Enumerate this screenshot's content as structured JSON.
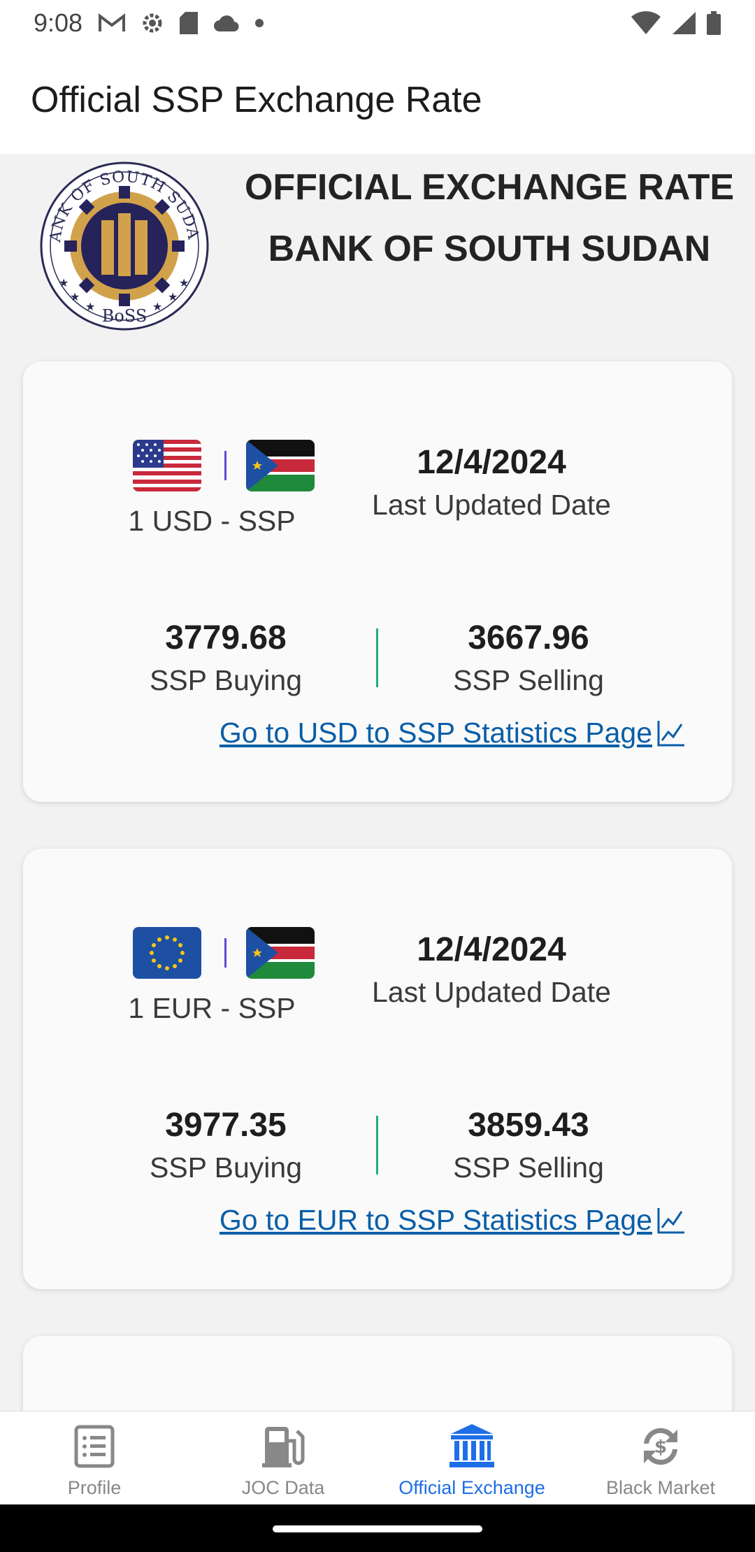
{
  "status_bar": {
    "time": "9:08",
    "left_icons": [
      "gmail-icon",
      "settings-icon",
      "sd-card-icon",
      "cloud-icon",
      "dot-icon"
    ],
    "right_icons": [
      "wifi-icon",
      "signal-icon",
      "battery-icon"
    ]
  },
  "app_bar": {
    "title": "Official SSP Exchange Rate"
  },
  "header": {
    "line1": "OFFICIAL EXCHANGE RATE",
    "line2": "BANK OF SOUTH SUDAN",
    "seal": {
      "top_text": "BANK OF SOUTH SUDAN",
      "bottom_text": "BoSS"
    }
  },
  "cards": [
    {
      "pair": "1 USD - SSP",
      "date": "12/4/2024",
      "date_label": "Last Updated Date",
      "buying_value": "3779.68",
      "buying_label": "SSP Buying",
      "selling_value": "3667.96",
      "selling_label": "SSP Selling",
      "link": "Go to USD to SSP Statistics Page",
      "flags": [
        "us-flag-icon",
        "south-sudan-flag-icon"
      ]
    },
    {
      "pair": "1 EUR - SSP",
      "date": "12/4/2024",
      "date_label": "Last Updated Date",
      "buying_value": "3977.35",
      "buying_label": "SSP Buying",
      "selling_value": "3859.43",
      "selling_label": "SSP Selling",
      "link": "Go to EUR to SSP Statistics Page",
      "flags": [
        "eu-flag-icon",
        "south-sudan-flag-icon"
      ]
    }
  ],
  "bottom_nav": {
    "items": [
      {
        "label": "Profile",
        "icon": "list-icon",
        "active": false
      },
      {
        "label": "JOC Data",
        "icon": "fuel-pump-icon",
        "active": false
      },
      {
        "label": "Official Exchange",
        "icon": "bank-icon",
        "active": true
      },
      {
        "label": "Black Market",
        "icon": "currency-exchange-icon",
        "active": false
      }
    ]
  },
  "colors": {
    "accent": "#1e6ee8",
    "link": "#0a5ea8",
    "divider_green": "#1fae7a",
    "divider_purple": "#5b4bd4"
  }
}
